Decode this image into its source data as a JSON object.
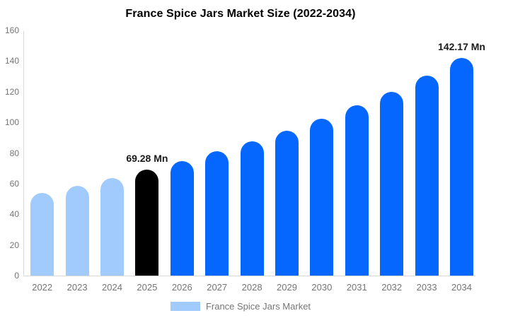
{
  "chart_data": {
    "type": "bar",
    "title": "France Spice Jars Market Size (2022-2034)",
    "xlabel": "",
    "ylabel": "",
    "categories": [
      "2022",
      "2023",
      "2024",
      "2025",
      "2026",
      "2027",
      "2028",
      "2029",
      "2030",
      "2031",
      "2032",
      "2033",
      "2034"
    ],
    "values": [
      54,
      58.5,
      63.5,
      69.28,
      74.5,
      81,
      87.5,
      94.5,
      102.5,
      111,
      120,
      130.5,
      142.17
    ],
    "point_colors": [
      "past",
      "past",
      "past",
      "current",
      "forecast",
      "forecast",
      "forecast",
      "forecast",
      "forecast",
      "forecast",
      "forecast",
      "forecast",
      "forecast"
    ],
    "colors": {
      "past": "#a1cbfc",
      "current": "#000000",
      "forecast": "#0667ff",
      "axis": "#d9d9d9",
      "tick_text": "#757575",
      "annotation_text": "#1a1a1a"
    },
    "ylim": [
      0,
      160
    ],
    "yticks": [
      0,
      20,
      40,
      60,
      80,
      100,
      120,
      140,
      160
    ],
    "grid": false,
    "annotations": [
      {
        "index": 3,
        "text": "69.28 Mn"
      },
      {
        "index": 12,
        "text": "142.17 Mn"
      }
    ],
    "legend": {
      "label": "France Spice Jars Market",
      "position": "bottom"
    }
  }
}
